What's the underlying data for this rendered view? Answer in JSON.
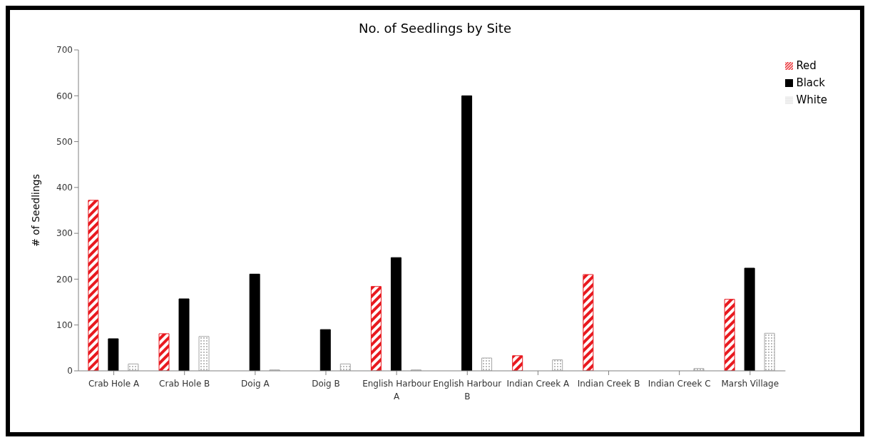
{
  "chart_data": {
    "type": "bar",
    "title": "No. of Seedlings by Site",
    "ylabel": "# of Seedlings",
    "categories": [
      "Crab Hole A",
      "Crab Hole B",
      "Doig A",
      "Doig B",
      "English Harbour A",
      "English Harbour B",
      "Indian Creek A",
      "Indian Creek B",
      "Indian Creek C",
      "Marsh Village"
    ],
    "series": [
      {
        "name": "Red",
        "color": "#e8191f",
        "values": [
          372,
          81,
          0,
          0,
          184,
          0,
          33,
          210,
          0,
          156
        ]
      },
      {
        "name": "Black",
        "color": "#000000",
        "values": [
          70,
          157,
          211,
          90,
          247,
          600,
          0,
          0,
          0,
          224
        ]
      },
      {
        "name": "White",
        "color": "#a6a6a6",
        "values": [
          15,
          75,
          2,
          15,
          2,
          28,
          24,
          0,
          5,
          82
        ]
      }
    ],
    "ylim": [
      0,
      700
    ],
    "yticks": [
      0,
      100,
      200,
      300,
      400,
      500,
      600,
      700
    ],
    "legend": "top right"
  }
}
